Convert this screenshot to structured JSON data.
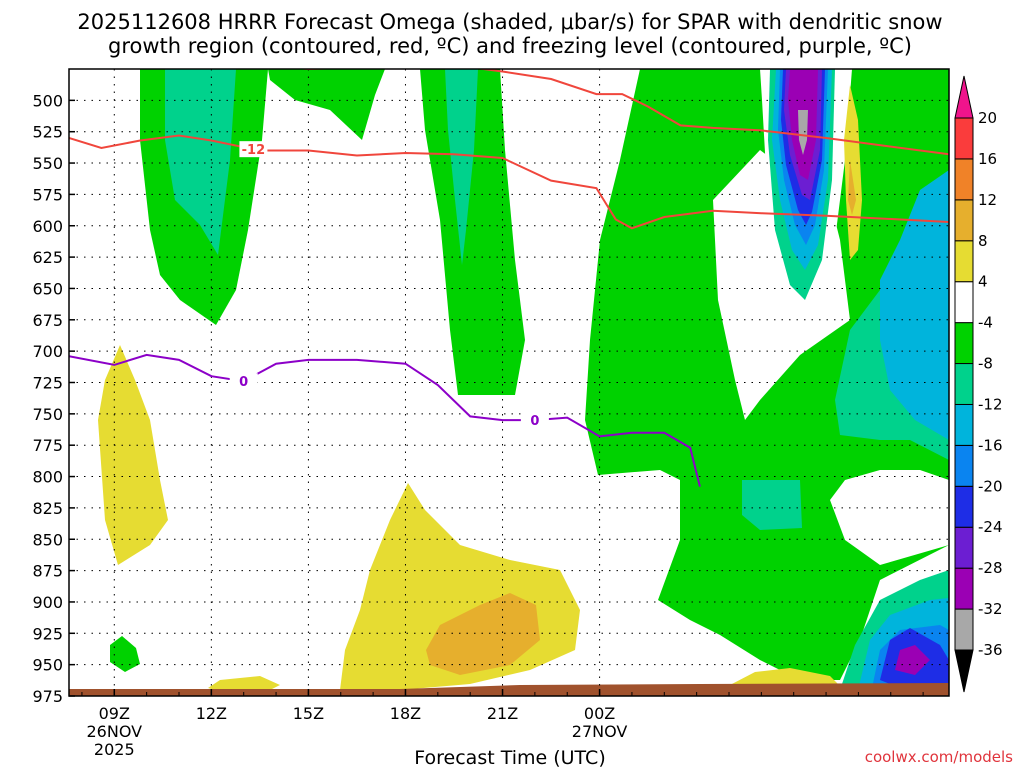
{
  "chart_data": {
    "type": "heatmap",
    "title_lines": [
      "2025112608 HRRR Forecast Omega (shaded, μbar/s) for SPAR with dendritic snow",
      "growth region (contoured, red, ºC) and freezing level (contoured, purple, ºC)"
    ],
    "xlabel": "Forecast Time (UTC)",
    "ylabel": "",
    "credit": "coolwx.com/models",
    "x_range_hours": [
      7.6,
      34.8
    ],
    "y_levels": [
      500,
      525,
      550,
      575,
      600,
      625,
      650,
      675,
      700,
      725,
      750,
      775,
      800,
      825,
      850,
      875,
      900,
      925,
      950,
      975
    ],
    "y_range": [
      975,
      475
    ],
    "x_ticks": [
      {
        "hour": 9,
        "lines": [
          "09Z",
          "26NOV",
          "2025"
        ]
      },
      {
        "hour": 12,
        "lines": [
          "12Z"
        ]
      },
      {
        "hour": 15,
        "lines": [
          "15Z"
        ]
      },
      {
        "hour": 18,
        "lines": [
          "18Z"
        ]
      },
      {
        "hour": 21,
        "lines": [
          "21Z"
        ]
      },
      {
        "hour": 24,
        "lines": [
          "00Z",
          "27NOV"
        ]
      }
    ],
    "colorbar": {
      "levels": [
        -36,
        -32,
        -28,
        -24,
        -20,
        -16,
        -12,
        -8,
        -4,
        4,
        8,
        12,
        16,
        20
      ],
      "colors": {
        "below_min": "#000000",
        "n36_n32": "#a8a8a8",
        "n32_n28": "#9b00b4",
        "n28_n24": "#6c1ed2",
        "n24_n20": "#1e2de6",
        "n20_n16": "#0a84f0",
        "n16_n12": "#00b4dc",
        "n12_n8": "#00d28c",
        "n8_n4": "#00d200",
        "n4_p4": "#ffffff",
        "p4_p8": "#e6dc32",
        "p8_p12": "#e6af2d",
        "p12_p16": "#f08228",
        "p16_p20": "#fa3c3c",
        "above_max": "#f0148c"
      }
    },
    "series": [
      {
        "name": "dendritic upper (-18C)",
        "color": "#f0463c",
        "x": [
          7.6,
          8.6,
          9.5,
          10.5,
          12.0,
          13.5,
          15.0,
          16.5,
          18.0,
          19.5,
          21.0,
          22.5,
          23.9,
          24.7,
          25.5,
          26.5,
          27.5,
          29.0,
          31.0,
          34.8
        ],
        "y": [
          469,
          471,
          471,
          471,
          471,
          472,
          475,
          474,
          471,
          472,
          477,
          483,
          495,
          495,
          505,
          520,
          522,
          524,
          530,
          543
        ]
      },
      {
        "name": "dendritic lower (-12C)",
        "color": "#f0463c",
        "label": "-12",
        "label_x": 13.3,
        "x": [
          7.6,
          8.6,
          9.8,
          11.0,
          12.0,
          13.5,
          15.0,
          16.5,
          18.0,
          19.5,
          21.0,
          22.5,
          23.9,
          24.5,
          25.0,
          26.0,
          27.5,
          29.0,
          31.0,
          34.8
        ],
        "y": [
          530,
          538,
          532,
          528,
          532,
          540,
          540,
          544,
          542,
          543,
          546,
          564,
          570,
          595,
          602,
          593,
          588,
          590,
          592,
          597
        ],
        "y_visible_after_24": true
      },
      {
        "name": "freezing level (0C)",
        "color": "#8c00c8",
        "label": "0",
        "label_x": 13.0,
        "label2_x": 22.0,
        "x": [
          7.6,
          9.0,
          10.0,
          11.0,
          12.0,
          13.0,
          14.0,
          15.0,
          16.5,
          18.0,
          19.0,
          20.0,
          21.0,
          22.0,
          23.0,
          24.0,
          25.0,
          26.0,
          26.8,
          27.1
        ],
        "y": [
          704,
          711,
          703,
          707,
          720,
          724,
          710,
          707,
          707,
          710,
          727,
          752,
          755,
          755,
          753,
          768,
          765,
          765,
          777,
          808
        ]
      }
    ]
  }
}
